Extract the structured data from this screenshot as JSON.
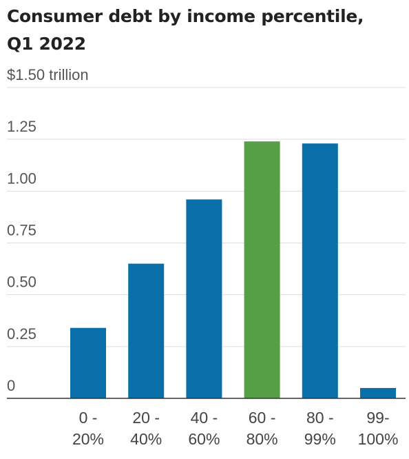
{
  "chart_data": {
    "type": "bar",
    "title": "Consumer debt by income percentile, Q1 2022",
    "xlabel": "",
    "ylabel": "",
    "ylim": [
      0,
      1.5
    ],
    "y_ticks": [
      0,
      0.25,
      0.5,
      0.75,
      1.0,
      1.25,
      1.5
    ],
    "y_tick_labels": [
      "0",
      "0.25",
      "0.50",
      "0.75",
      "1.00",
      "1.25",
      "$1.50 trillion"
    ],
    "grid": true,
    "legend": "none",
    "categories": [
      [
        "0 -",
        "20%"
      ],
      [
        "20 -",
        "40%"
      ],
      [
        "40 -",
        "60%"
      ],
      [
        "60 -",
        "80%"
      ],
      [
        "80 -",
        "99%"
      ],
      [
        "99-",
        "100%"
      ]
    ],
    "values": [
      0.34,
      0.65,
      0.96,
      1.24,
      1.23,
      0.05
    ],
    "colors": {
      "default_bar": "#0a6fa8",
      "highlight_bar": "#55a047",
      "grid": "#dddddd",
      "baseline": "#333333"
    },
    "highlight_index": 3
  }
}
